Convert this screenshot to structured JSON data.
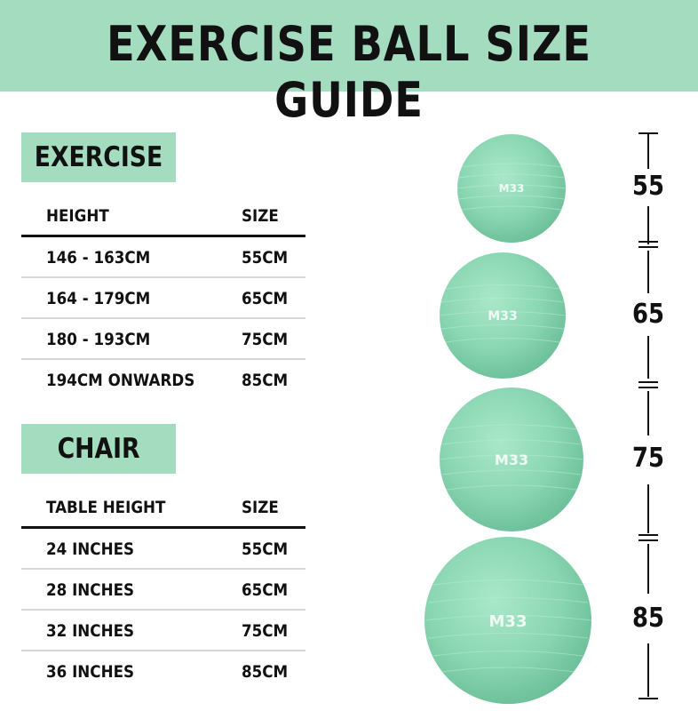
{
  "title": "EXERCISE BALL SIZE GUIDE",
  "sections": [
    {
      "label": "EXERCISE",
      "header": [
        "HEIGHT",
        "SIZE"
      ],
      "rows": [
        [
          "146 - 163CM",
          "55CM"
        ],
        [
          "164 - 179CM",
          "65CM"
        ],
        [
          "180 - 193CM",
          "75CM"
        ],
        [
          "194CM ONWARDS",
          "85CM"
        ]
      ]
    },
    {
      "label": "CHAIR",
      "header": [
        "TABLE HEIGHT",
        "SIZE"
      ],
      "rows": [
        [
          "24 INCHES",
          "55CM"
        ],
        [
          "28 INCHES",
          "65CM"
        ],
        [
          "32 INCHES",
          "75CM"
        ],
        [
          "36 INCHES",
          "85CM"
        ]
      ]
    }
  ],
  "balls": [
    {
      "size": "55",
      "logo": "M33"
    },
    {
      "size": "65",
      "logo": "M33"
    },
    {
      "size": "75",
      "logo": "M33"
    },
    {
      "size": "85",
      "logo": "M33"
    }
  ],
  "colors": {
    "accent": "#a3dcbe",
    "ball": "#8fd9b6",
    "text": "#111111"
  }
}
